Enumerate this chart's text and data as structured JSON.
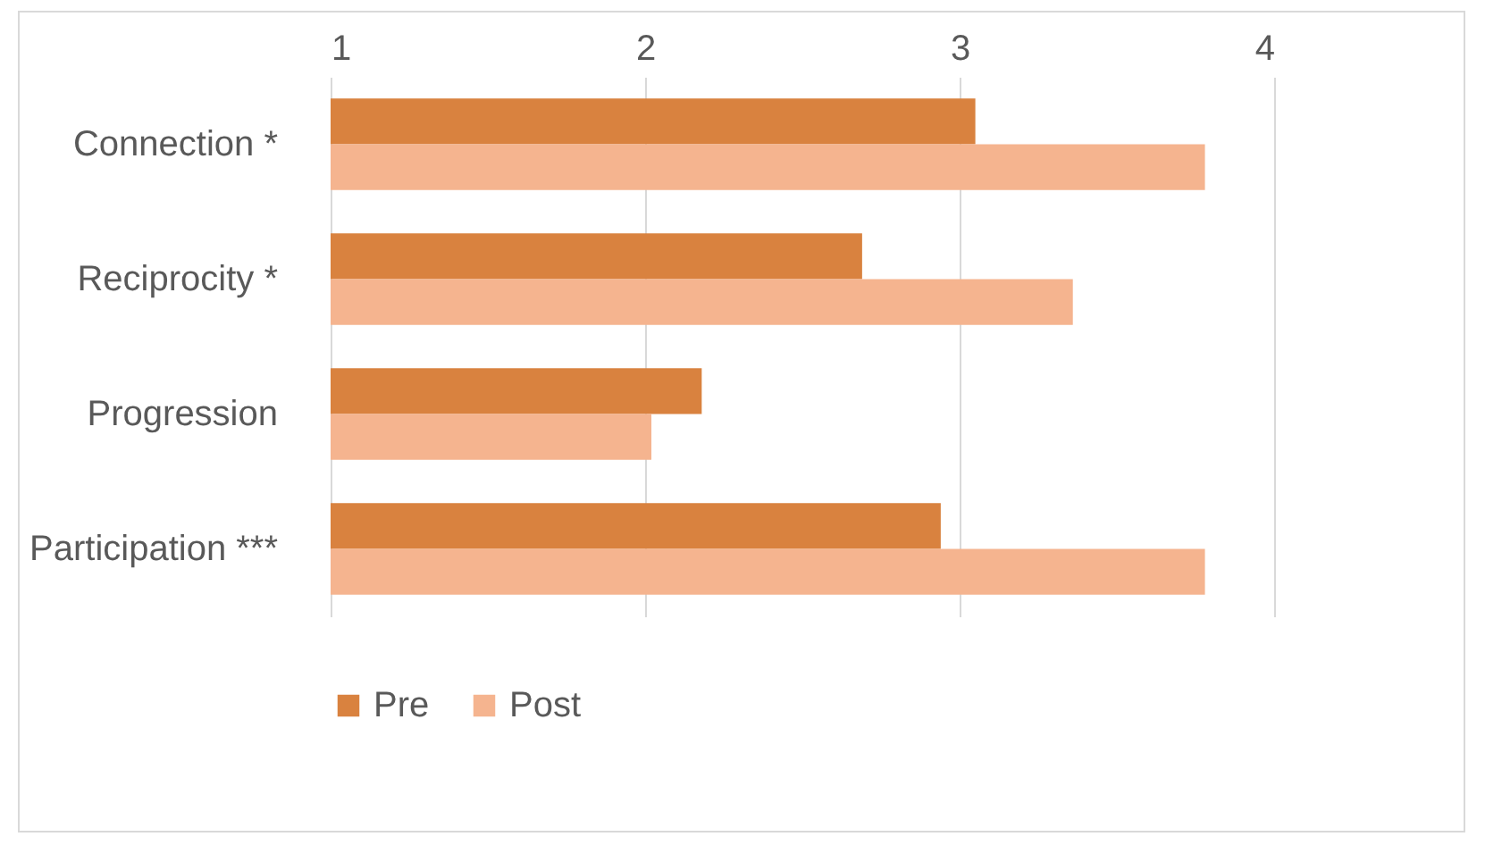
{
  "chart_data": {
    "type": "bar",
    "orientation": "horizontal",
    "categories": [
      "Connection *",
      "Reciprocity *",
      "Progression",
      "Participation ***"
    ],
    "series": [
      {
        "name": "Pre",
        "color": "#d9823f",
        "values": [
          3.05,
          2.69,
          2.18,
          2.94
        ]
      },
      {
        "name": "Post",
        "color": "#f5b48f",
        "values": [
          3.78,
          3.36,
          2.02,
          3.78
        ]
      }
    ],
    "xlim": [
      1,
      4
    ],
    "xticks": [
      1,
      2,
      3,
      4
    ],
    "grid": "x",
    "legend": "bottom"
  }
}
